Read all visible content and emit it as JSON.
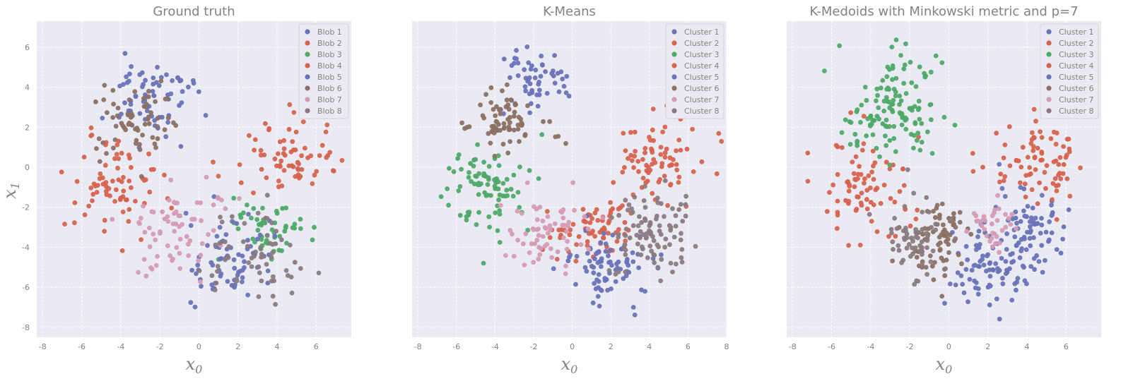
{
  "colors": {
    "blue": "#6a73b9",
    "red": "#d7634f",
    "green": "#4faa69",
    "brown": "#8c7163",
    "pink": "#d59cb4",
    "gray": "#8b7b80",
    "background": "#eaeaf2",
    "text": "#8a7f7f"
  },
  "figure": {
    "xlabel": "x",
    "xlabel_sub": "0",
    "ylabel": "x",
    "ylabel_sub": "1"
  },
  "chart_data": [
    {
      "type": "scatter",
      "title": "Ground truth",
      "xlabel": "x0",
      "ylabel": "x1",
      "xlim": [
        -8.3,
        7.8
      ],
      "ylim": [
        -8.5,
        7.3
      ],
      "xticks": [
        -8,
        -6,
        -4,
        -2,
        0,
        2,
        4,
        6
      ],
      "yticks": [
        -8,
        -6,
        -4,
        -2,
        0,
        2,
        4,
        6
      ],
      "show_yticks": true,
      "grid": true,
      "legend": "top-right",
      "series": [
        {
          "name": "Blob 1",
          "color": "#6a73b9",
          "center": [
            -2.6,
            3.6
          ],
          "spread": [
            1.1,
            1.0
          ],
          "count": 70
        },
        {
          "name": "Blob 2",
          "color": "#d7634f",
          "center": [
            -4.3,
            -0.9
          ],
          "spread": [
            1.3,
            1.2
          ],
          "count": 75
        },
        {
          "name": "Blob 3",
          "color": "#4faa69",
          "center": [
            3.6,
            -3.0
          ],
          "spread": [
            1.0,
            0.9
          ],
          "count": 55
        },
        {
          "name": "Blob 4",
          "color": "#d7634f",
          "center": [
            4.4,
            0.3
          ],
          "spread": [
            1.2,
            1.1
          ],
          "count": 70
        },
        {
          "name": "Blob 5",
          "color": "#6a73b9",
          "center": [
            1.6,
            -4.7
          ],
          "spread": [
            1.2,
            1.1
          ],
          "count": 70
        },
        {
          "name": "Blob 6",
          "color": "#8c7163",
          "center": [
            -3.2,
            2.2
          ],
          "spread": [
            1.0,
            0.9
          ],
          "count": 65
        },
        {
          "name": "Blob 7",
          "color": "#d59cb4",
          "center": [
            -1.3,
            -3.2
          ],
          "spread": [
            1.2,
            1.1
          ],
          "count": 70
        },
        {
          "name": "Blob 8",
          "color": "#8b7b80",
          "center": [
            2.9,
            -4.3
          ],
          "spread": [
            1.2,
            1.1
          ],
          "count": 60
        }
      ]
    },
    {
      "type": "scatter",
      "title": "K-Means",
      "xlabel": "x0",
      "ylabel": "",
      "xlim": [
        -8.3,
        8.0
      ],
      "ylim": [
        -8.5,
        7.3
      ],
      "xticks": [
        -8,
        -6,
        -4,
        -2,
        0,
        2,
        4,
        6,
        8
      ],
      "yticks": [
        -8,
        -6,
        -4,
        -2,
        0,
        2,
        4,
        6
      ],
      "show_yticks": false,
      "grid": true,
      "legend": "top-right",
      "series": [
        {
          "name": "Cluster 1",
          "color": "#6a73b9",
          "center": [
            -1.8,
            4.2
          ],
          "spread": [
            0.9,
            0.9
          ],
          "count": 55
        },
        {
          "name": "Cluster 2",
          "color": "#d7634f",
          "center": [
            1.1,
            -3.0
          ],
          "spread": [
            1.0,
            0.7
          ],
          "count": 70
        },
        {
          "name": "Cluster 3",
          "color": "#4faa69",
          "center": [
            -4.6,
            -0.9
          ],
          "spread": [
            1.1,
            1.2
          ],
          "count": 85
        },
        {
          "name": "Cluster 4",
          "color": "#d7634f",
          "center": [
            4.5,
            0.4
          ],
          "spread": [
            1.1,
            1.1
          ],
          "count": 80
        },
        {
          "name": "Cluster 5",
          "color": "#6a73b9",
          "center": [
            1.8,
            -4.9
          ],
          "spread": [
            1.1,
            0.9
          ],
          "count": 80
        },
        {
          "name": "Cluster 6",
          "color": "#8c7163",
          "center": [
            -3.3,
            2.3
          ],
          "spread": [
            1.0,
            0.8
          ],
          "count": 75
        },
        {
          "name": "Cluster 7",
          "color": "#d59cb4",
          "center": [
            -1.4,
            -3.4
          ],
          "spread": [
            1.0,
            1.1
          ],
          "count": 65
        },
        {
          "name": "Cluster 8",
          "color": "#8b7b80",
          "center": [
            4.0,
            -3.4
          ],
          "spread": [
            1.0,
            1.1
          ],
          "count": 95
        }
      ]
    },
    {
      "type": "scatter",
      "title": "K-Medoids with Minkowski metric and p=7",
      "xlabel": "x0",
      "ylabel": "",
      "xlim": [
        -8.3,
        7.8
      ],
      "ylim": [
        -8.5,
        7.3
      ],
      "xticks": [
        -8,
        -6,
        -4,
        -2,
        0,
        2,
        4,
        6
      ],
      "yticks": [
        -8,
        -6,
        -4,
        -2,
        0,
        2,
        4,
        6
      ],
      "show_yticks": false,
      "grid": true,
      "legend": "top-right",
      "series": [
        {
          "name": "Cluster 1",
          "color": "#6a73b9",
          "center": [
            4.3,
            -3.2
          ],
          "spread": [
            0.9,
            1.2
          ],
          "count": 75
        },
        {
          "name": "Cluster 2",
          "color": "#d7634f",
          "center": [
            -4.5,
            -0.9
          ],
          "spread": [
            1.2,
            1.2
          ],
          "count": 80
        },
        {
          "name": "Cluster 3",
          "color": "#4faa69",
          "center": [
            -2.7,
            3.0
          ],
          "spread": [
            1.2,
            1.3
          ],
          "count": 130
        },
        {
          "name": "Cluster 4",
          "color": "#d7634f",
          "center": [
            4.6,
            0.4
          ],
          "spread": [
            1.1,
            1.1
          ],
          "count": 80
        },
        {
          "name": "Cluster 5",
          "color": "#6a73b9",
          "center": [
            2.0,
            -5.0
          ],
          "spread": [
            1.1,
            0.9
          ],
          "count": 80
        },
        {
          "name": "Cluster 6",
          "color": "#8c7163",
          "center": [
            -0.6,
            -3.6
          ],
          "spread": [
            0.9,
            1.0
          ],
          "count": 70
        },
        {
          "name": "Cluster 7",
          "color": "#d59cb4",
          "center": [
            2.3,
            -3.0
          ],
          "spread": [
            0.6,
            0.7
          ],
          "count": 35
        },
        {
          "name": "Cluster 8",
          "color": "#8b7b80",
          "center": [
            -1.8,
            -3.2
          ],
          "spread": [
            0.8,
            1.1
          ],
          "count": 60
        }
      ]
    }
  ]
}
